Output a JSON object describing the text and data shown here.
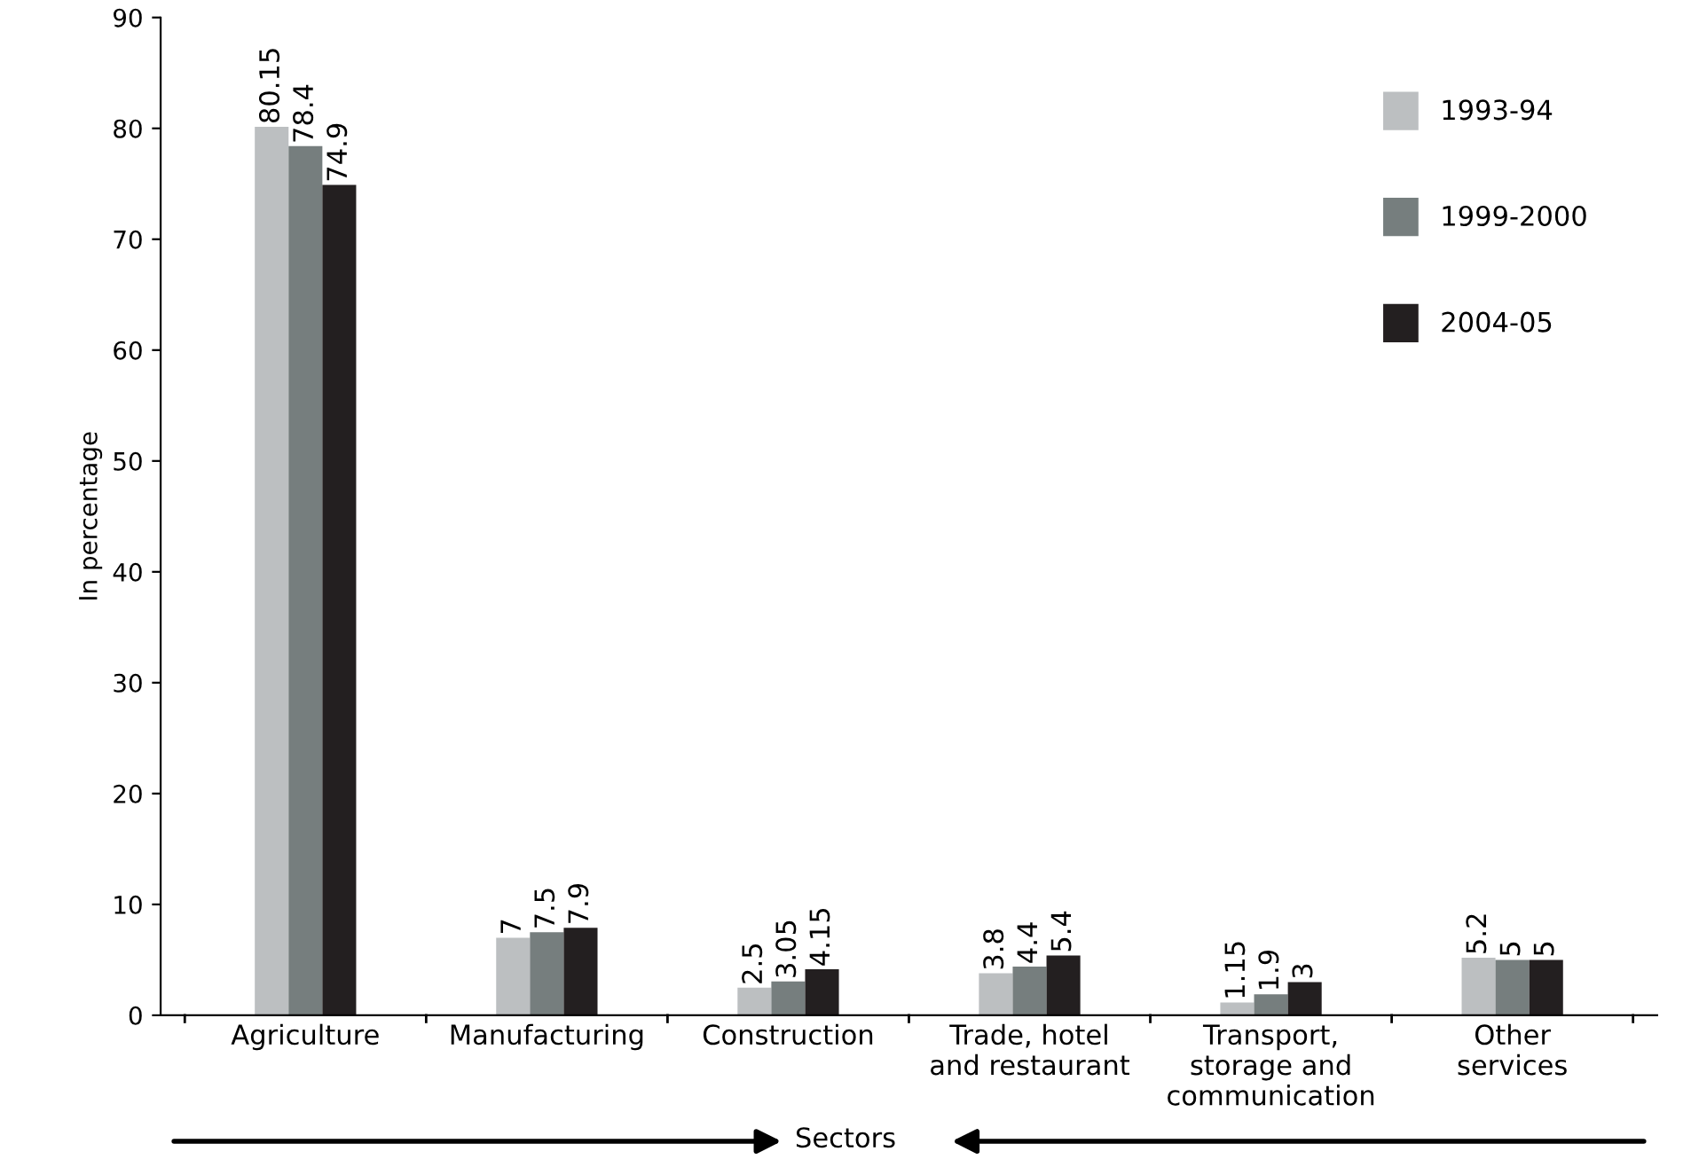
{
  "chart_data": {
    "type": "bar",
    "xlabel": "Sectors",
    "ylabel": "In percentage",
    "categories": [
      "Agriculture",
      "Manufacturing",
      "Construction",
      "Trade, hotel\nand restaurant",
      "Transport,\nstorage and\ncommunication",
      "Other\nservices"
    ],
    "series": [
      {
        "name": "1993-94",
        "color": "#bcbfc1",
        "values": [
          80.15,
          7,
          2.5,
          3.8,
          1.15,
          5.2
        ]
      },
      {
        "name": "1999-2000",
        "color": "#767e7e",
        "values": [
          78.4,
          7.5,
          3.05,
          4.4,
          1.9,
          5
        ]
      },
      {
        "name": "2004-05",
        "color": "#231f20",
        "values": [
          74.9,
          7.9,
          4.15,
          5.4,
          3,
          5
        ]
      }
    ],
    "ylim": [
      0,
      90
    ],
    "yticks": [
      0,
      10,
      20,
      30,
      40,
      50,
      60,
      70,
      80,
      90
    ],
    "grid": false,
    "legend": "top right",
    "data_labels": true
  }
}
